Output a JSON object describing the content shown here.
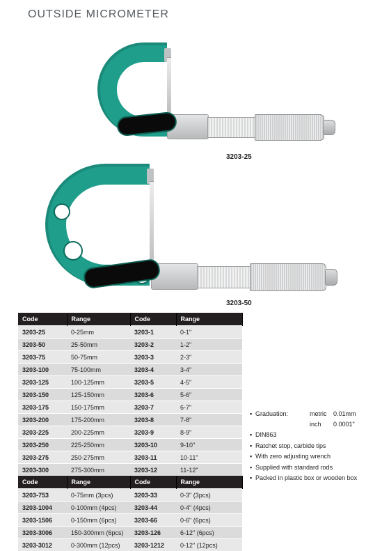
{
  "title": "OUTSIDE MICROMETER",
  "captions": {
    "c1": "3203-25",
    "c2": "3203-50"
  },
  "colors": {
    "frame": "#1f9e8b",
    "frame_dark": "#0e6b5c",
    "badge": "#0a0a0a",
    "metal_light": "#e4e5e6",
    "metal_dark": "#b7b9ba",
    "header_bg": "#231f20",
    "row_odd": "#e9e8e9",
    "row_even": "#dcdbdc"
  },
  "table1": {
    "headers": [
      "Code",
      "Range",
      "Code",
      "Range"
    ],
    "rows": [
      [
        "3203-25",
        "0-25mm",
        "3203-1",
        "0-1\""
      ],
      [
        "3203-50",
        "25-50mm",
        "3203-2",
        "1-2\""
      ],
      [
        "3203-75",
        "50-75mm",
        "3203-3",
        "2-3\""
      ],
      [
        "3203-100",
        "75-100mm",
        "3203-4",
        "3-4\""
      ],
      [
        "3203-125",
        "100-125mm",
        "3203-5",
        "4-5\""
      ],
      [
        "3203-150",
        "125-150mm",
        "3203-6",
        "5-6\""
      ],
      [
        "3203-175",
        "150-175mm",
        "3203-7",
        "6-7\""
      ],
      [
        "3203-200",
        "175-200mm",
        "3203-8",
        "7-8\""
      ],
      [
        "3203-225",
        "200-225mm",
        "3203-9",
        "8-9\""
      ],
      [
        "3203-250",
        "225-250mm",
        "3203-10",
        "9-10\""
      ],
      [
        "3203-275",
        "250-275mm",
        "3203-11",
        "10-11\""
      ],
      [
        "3203-300",
        "275-300mm",
        "3203-12",
        "11-12\""
      ]
    ]
  },
  "table2": {
    "headers": [
      "Code",
      "Range",
      "Code",
      "Range"
    ],
    "rows": [
      [
        "3203-753",
        "0-75mm (3pcs)",
        "3203-33",
        "0-3\" (3pcs)"
      ],
      [
        "3203-1004",
        "0-100mm (4pcs)",
        "3203-44",
        "0-4\" (4pcs)"
      ],
      [
        "3203-1506",
        "0-150mm (6pcs)",
        "3203-66",
        "0-6\" (6pcs)"
      ],
      [
        "3203-3006",
        "150-300mm (6pcs)",
        "3203-126",
        "6-12\" (6pcs)"
      ],
      [
        "3203-3012",
        "0-300mm (12pcs)",
        "3203-1212",
        "0-12\" (12pcs)"
      ]
    ]
  },
  "specs": {
    "grad_label": "Graduation:",
    "grad_metric_k": "metric",
    "grad_metric_v": "0.01mm",
    "grad_inch_k": "inch",
    "grad_inch_v": "0.0001\"",
    "bullets": [
      "DIN863",
      "Ratchet stop, carbide tips",
      "With zero adjusting wrench",
      "Supplied with standard rods",
      "Packed in plastic box or wooden box"
    ]
  }
}
